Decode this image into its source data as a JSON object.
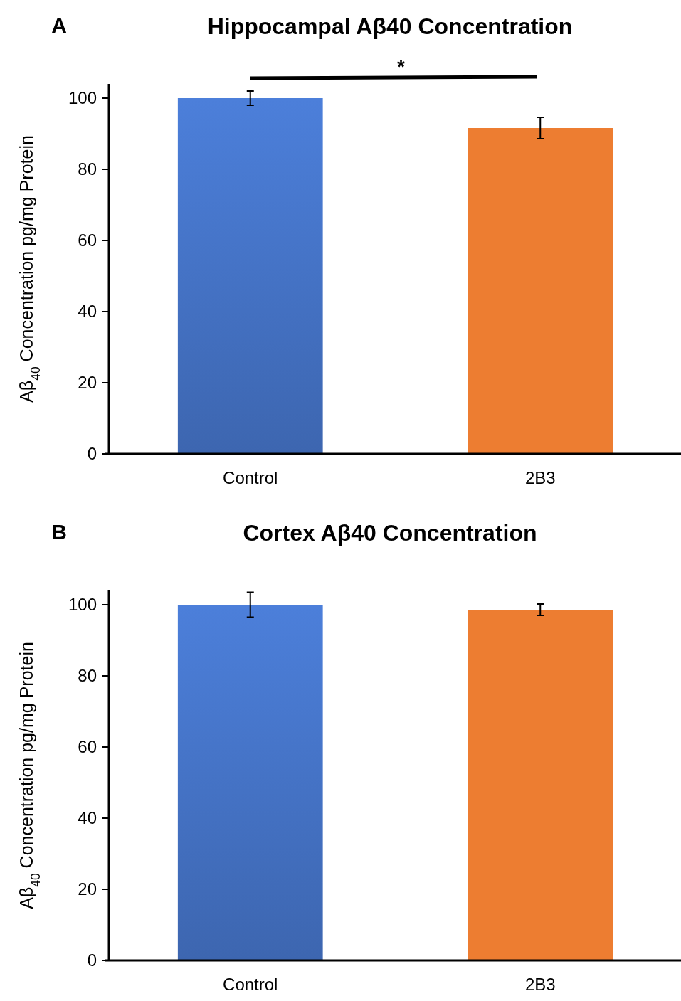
{
  "chart_data": [
    {
      "type": "bar",
      "title": "Hippocampal Aβ40 Concentration",
      "ylabel": "Aβ$_{40}$ Concentration pg/mg Protein",
      "categories": [
        "Control",
        "2B3"
      ],
      "values": [
        100,
        91.6
      ],
      "colors": [
        "#4472c4",
        "#ed7d31"
      ],
      "errors": [
        2,
        3
      ],
      "ylim": [
        0,
        104
      ],
      "yticks": [
        0,
        20,
        40,
        60,
        80,
        100
      ],
      "annotations": [
        "A",
        "*"
      ]
    },
    {
      "type": "bar",
      "title": "Cortex Aβ40 Concentration",
      "ylabel": "Aβ$_{40}$ Concentration pg/mg Protein",
      "categories": [
        "Control",
        "2B3"
      ],
      "values": [
        100,
        98.6
      ],
      "colors": [
        "#4472c4",
        "#ed7d31"
      ],
      "errors": [
        3.5,
        1.6
      ],
      "ylim": [
        0,
        104
      ],
      "yticks": [
        0,
        20,
        40,
        60,
        80,
        100
      ],
      "annotations": [
        "B"
      ]
    }
  ]
}
